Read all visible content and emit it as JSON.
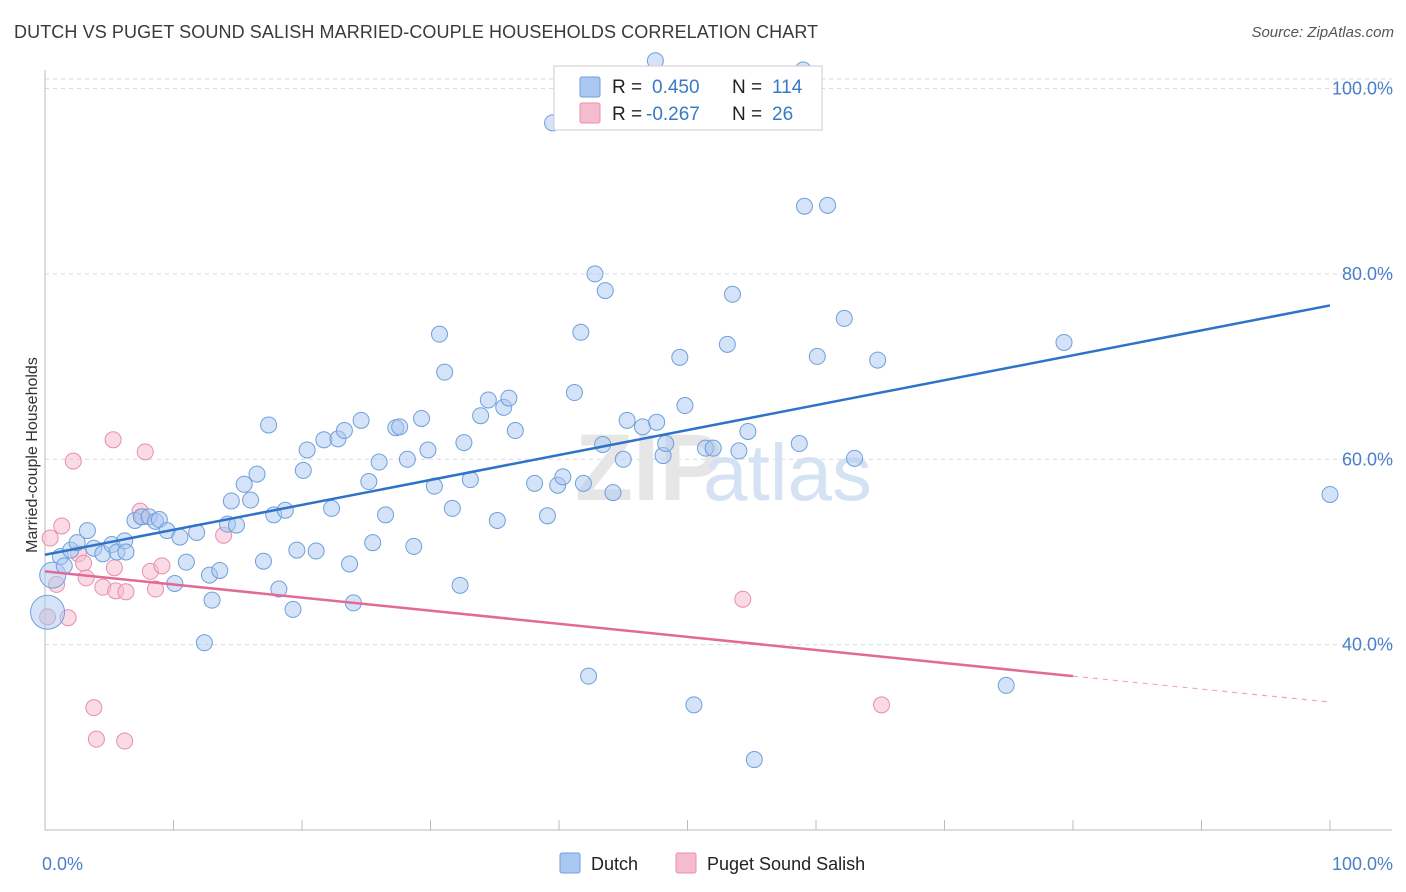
{
  "title": "DUTCH VS PUGET SOUND SALISH MARRIED-COUPLE HOUSEHOLDS CORRELATION CHART",
  "source": "Source: ZipAtlas.com",
  "watermark": "ZIPatlas",
  "colors": {
    "dutch_fill": "#aac8ef",
    "dutch_stroke": "#6f9fdc",
    "dutch_line": "#2f73c9",
    "salish_fill": "#f5bcd0",
    "salish_stroke": "#e88eac",
    "salish_line": "#e26a97",
    "grid": "#d9d9d9",
    "accent_text": "#4a7fc9"
  },
  "legend": {
    "r_label": "R =",
    "n_label": "N =",
    "dutch": {
      "r": "0.450",
      "n": "114"
    },
    "salish": {
      "r": "-0.267",
      "n": "26"
    }
  },
  "bottom_legend": {
    "dutch": "Dutch",
    "salish": "Puget Sound Salish"
  },
  "chart_data": {
    "type": "scatter",
    "title": "DUTCH VS PUGET SOUND SALISH MARRIED-COUPLE HOUSEHOLDS CORRELATION CHART",
    "xlabel": "",
    "ylabel": "Married-couple Households",
    "xlim": [
      0,
      100
    ],
    "ylim": [
      20,
      102
    ],
    "x_tick_labels": [
      "0.0%",
      "100.0%"
    ],
    "y_ticks": [
      40,
      60,
      80,
      100
    ],
    "y_tick_labels": [
      "40.0%",
      "60.0%",
      "80.0%",
      "100.0%"
    ],
    "grid": true,
    "legend_position": "top-center",
    "series": [
      {
        "name": "Dutch",
        "r": 0.45,
        "n": 114,
        "trend": {
          "x0": 0,
          "y0": 49.7,
          "x1": 100,
          "y1": 76.6
        },
        "points": [
          [
            0.2,
            43.5
          ],
          [
            0.6,
            47.5
          ],
          [
            1.2,
            49.5
          ],
          [
            1.5,
            48.5
          ],
          [
            2.0,
            50.2
          ],
          [
            2.5,
            51.0
          ],
          [
            3.3,
            52.3
          ],
          [
            3.8,
            50.4
          ],
          [
            4.5,
            49.8
          ],
          [
            5.2,
            50.8
          ],
          [
            5.6,
            50.0
          ],
          [
            6.2,
            51.2
          ],
          [
            6.3,
            50.0
          ],
          [
            7.0,
            53.4
          ],
          [
            7.5,
            53.8
          ],
          [
            8.1,
            53.8
          ],
          [
            8.6,
            53.3
          ],
          [
            8.9,
            53.5
          ],
          [
            9.5,
            52.3
          ],
          [
            10.1,
            46.6
          ],
          [
            10.5,
            51.6
          ],
          [
            11.0,
            48.9
          ],
          [
            11.8,
            52.1
          ],
          [
            12.4,
            40.2
          ],
          [
            12.8,
            47.5
          ],
          [
            13.0,
            44.8
          ],
          [
            13.6,
            48.0
          ],
          [
            14.2,
            53.0
          ],
          [
            14.5,
            55.5
          ],
          [
            14.9,
            52.9
          ],
          [
            15.5,
            57.3
          ],
          [
            16.0,
            55.6
          ],
          [
            16.5,
            58.4
          ],
          [
            17.0,
            49.0
          ],
          [
            17.4,
            63.7
          ],
          [
            17.8,
            54.0
          ],
          [
            18.2,
            46.0
          ],
          [
            18.7,
            54.5
          ],
          [
            19.3,
            43.8
          ],
          [
            19.6,
            50.2
          ],
          [
            20.1,
            58.8
          ],
          [
            20.4,
            61.0
          ],
          [
            21.1,
            50.1
          ],
          [
            21.7,
            62.1
          ],
          [
            22.3,
            54.7
          ],
          [
            22.8,
            62.2
          ],
          [
            23.3,
            63.1
          ],
          [
            23.7,
            48.7
          ],
          [
            24.0,
            44.5
          ],
          [
            24.6,
            64.2
          ],
          [
            25.2,
            57.6
          ],
          [
            25.5,
            51.0
          ],
          [
            26.0,
            59.7
          ],
          [
            26.5,
            54.0
          ],
          [
            27.3,
            63.4
          ],
          [
            27.6,
            63.5
          ],
          [
            28.2,
            60.0
          ],
          [
            28.7,
            50.6
          ],
          [
            29.3,
            64.4
          ],
          [
            29.8,
            61.0
          ],
          [
            30.3,
            57.1
          ],
          [
            30.7,
            73.5
          ],
          [
            31.1,
            69.4
          ],
          [
            31.7,
            54.7
          ],
          [
            32.3,
            46.4
          ],
          [
            32.6,
            61.8
          ],
          [
            33.1,
            57.8
          ],
          [
            33.9,
            64.7
          ],
          [
            34.5,
            66.4
          ],
          [
            35.2,
            53.4
          ],
          [
            35.7,
            65.6
          ],
          [
            36.1,
            66.6
          ],
          [
            36.6,
            63.1
          ],
          [
            38.1,
            57.4
          ],
          [
            39.1,
            53.9
          ],
          [
            39.5,
            96.3
          ],
          [
            39.9,
            57.2
          ],
          [
            40.3,
            58.1
          ],
          [
            41.2,
            67.2
          ],
          [
            41.7,
            73.7
          ],
          [
            41.9,
            57.4
          ],
          [
            42.3,
            36.6
          ],
          [
            42.8,
            80.0
          ],
          [
            43.4,
            61.6
          ],
          [
            43.6,
            78.2
          ],
          [
            44.2,
            56.4
          ],
          [
            45.0,
            60.0
          ],
          [
            45.3,
            64.2
          ],
          [
            46.5,
            63.5
          ],
          [
            47.6,
            64.0
          ],
          [
            48.1,
            60.4
          ],
          [
            48.3,
            61.7
          ],
          [
            49.4,
            71.0
          ],
          [
            49.8,
            65.8
          ],
          [
            50.5,
            33.5
          ],
          [
            51.4,
            61.2
          ],
          [
            52.0,
            61.2
          ],
          [
            53.1,
            72.4
          ],
          [
            53.5,
            77.8
          ],
          [
            54.0,
            60.9
          ],
          [
            54.7,
            63.0
          ],
          [
            55.2,
            27.6
          ],
          [
            58.7,
            61.7
          ],
          [
            59.1,
            87.3
          ],
          [
            60.1,
            71.1
          ],
          [
            60.9,
            87.4
          ],
          [
            62.2,
            75.2
          ],
          [
            63.0,
            60.1
          ],
          [
            64.8,
            70.7
          ],
          [
            74.8,
            35.6
          ],
          [
            79.3,
            72.6
          ],
          [
            100.0,
            56.2
          ],
          [
            47.5,
            103.0
          ],
          [
            59.0,
            102.0
          ]
        ]
      },
      {
        "name": "Puget Sound Salish",
        "r": -0.267,
        "n": 26,
        "trend": {
          "x0": 0,
          "y0": 47.9,
          "x1": 80,
          "y1": 36.6,
          "dash_to_x": 100,
          "dash_to_y": 33.8
        },
        "points": [
          [
            0.2,
            43.0
          ],
          [
            0.4,
            51.5
          ],
          [
            0.9,
            46.5
          ],
          [
            1.3,
            52.8
          ],
          [
            1.8,
            42.9
          ],
          [
            2.2,
            59.8
          ],
          [
            2.6,
            49.8
          ],
          [
            3.0,
            48.8
          ],
          [
            3.2,
            47.2
          ],
          [
            3.8,
            33.2
          ],
          [
            4.0,
            29.8
          ],
          [
            4.5,
            46.2
          ],
          [
            5.3,
            62.1
          ],
          [
            5.4,
            48.3
          ],
          [
            5.5,
            45.8
          ],
          [
            6.2,
            29.6
          ],
          [
            6.3,
            45.7
          ],
          [
            7.4,
            54.4
          ],
          [
            7.6,
            53.8
          ],
          [
            7.8,
            60.8
          ],
          [
            8.2,
            47.9
          ],
          [
            8.6,
            46.0
          ],
          [
            9.1,
            48.5
          ],
          [
            13.9,
            51.8
          ],
          [
            54.3,
            44.9
          ],
          [
            65.1,
            33.5
          ]
        ]
      }
    ]
  }
}
